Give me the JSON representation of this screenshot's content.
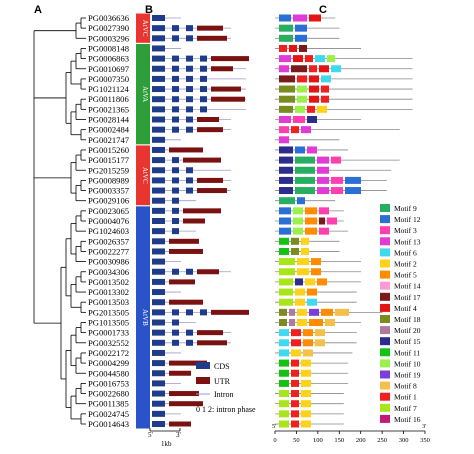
{
  "panels": {
    "a": "A",
    "b": "B",
    "c": "C"
  },
  "genes": [
    "PG0036636",
    "PG0027390",
    "PG0003296",
    "PG0008148",
    "PG0006863",
    "PG0010697",
    "PG0007350",
    "PG1021124",
    "PG0011806",
    "PG0021365",
    "PG0028144",
    "PG0002484",
    "PG0021747",
    "PG0015260",
    "PG0015177",
    "PG2015259",
    "PG0008989",
    "PG0003357",
    "PG0029106",
    "PG0023065",
    "PG0004076",
    "PG1024603",
    "PG0026357",
    "PG0022277",
    "PG0030986",
    "PG0034306",
    "PG0013502",
    "PG0013302",
    "PG0013503",
    "PG2013505",
    "PG1013505",
    "PG0001733",
    "PG0032552",
    "PG0022172",
    "PG0004299",
    "PG0044580",
    "PG0016753",
    "PG0022680",
    "PG0011385",
    "PG0024745",
    "PG0014643"
  ],
  "groups": [
    {
      "name": "AtVC",
      "color": "#e8352f"
    },
    {
      "name": "AtVA",
      "color": "#2e9e3a"
    },
    {
      "name": "AtVC",
      "color": "#e8352f"
    },
    {
      "name": "AtVB",
      "color": "#2a52c9"
    }
  ],
  "legend_b": {
    "cds": "CDS",
    "utr": "UTR",
    "intron": "Intron",
    "phase": "0 1 2: intron phase",
    "scale": "1kb",
    "start": "5'",
    "end": "3'"
  },
  "axis_c": {
    "ticks": [
      "0",
      "50",
      "100",
      "150",
      "200",
      "250",
      "300",
      "350"
    ],
    "start": "5'",
    "end": "3'"
  },
  "motifs": [
    {
      "label": "Motif 9",
      "color": "#27ae60"
    },
    {
      "label": "Motif 12",
      "color": "#2a6fd6"
    },
    {
      "label": "Motif 3",
      "color": "#ff3fb0"
    },
    {
      "label": "Motif 13",
      "color": "#e23ad6"
    },
    {
      "label": "Motif 6",
      "color": "#3fd9f0"
    },
    {
      "label": "Motif 2",
      "color": "#ffd21a"
    },
    {
      "label": "Motif 5",
      "color": "#ff8c00"
    },
    {
      "label": "Motif 14",
      "color": "#ff9ad6"
    },
    {
      "label": "Motif 17",
      "color": "#7a1a1a"
    },
    {
      "label": "Motif 4",
      "color": "#e31414"
    },
    {
      "label": "Motif 18",
      "color": "#7b8b1f"
    },
    {
      "label": "Motif 20",
      "color": "#b07aa0"
    },
    {
      "label": "Motif 15",
      "color": "#2c2c8c"
    },
    {
      "label": "Motif 11",
      "color": "#14c214"
    },
    {
      "label": "Motif 10",
      "color": "#9bf04a"
    },
    {
      "label": "Motif 19",
      "color": "#7a3fd6"
    },
    {
      "label": "Motif 8",
      "color": "#f5c04a"
    },
    {
      "label": "Motif 1",
      "color": "#ee2020"
    },
    {
      "label": "Motif 7",
      "color": "#a8e61a"
    },
    {
      "label": "Motif 16",
      "color": "#c2187a"
    }
  ]
}
